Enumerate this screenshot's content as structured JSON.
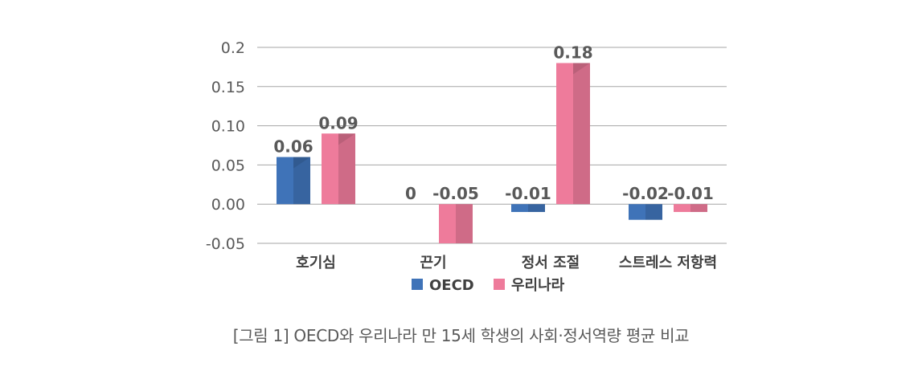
{
  "chart_data": {
    "type": "bar",
    "categories": [
      "호기심",
      "끈기",
      "정서 조절",
      "스트레스 저항력"
    ],
    "series": [
      {
        "name": "OECD",
        "values": [
          0.06,
          0,
          -0.01,
          -0.02
        ],
        "labels": [
          "0.06",
          "0",
          "-0.01",
          "-0.02"
        ],
        "color": "#3f73b8"
      },
      {
        "name": "우리나라",
        "values": [
          0.09,
          -0.05,
          0.18,
          -0.01
        ],
        "labels": [
          "0.09",
          "-0.05",
          "0.18",
          "-0.01"
        ],
        "color": "#ee7b9b"
      }
    ],
    "ylim": [
      -0.05,
      0.2
    ],
    "yticks": [
      -0.05,
      0.0,
      0.05,
      0.1,
      0.15,
      0.2
    ],
    "ytick_labels": [
      "-0.05",
      "0.00",
      "0.05",
      "0.10",
      "0.15",
      "0.2"
    ],
    "grid": true,
    "legend": "bottom",
    "title": "",
    "xlabel": "",
    "ylabel": ""
  },
  "caption": "[그림 1] OECD와 우리나라 만 15세 학생의 사회·정서역량 평균 비교"
}
